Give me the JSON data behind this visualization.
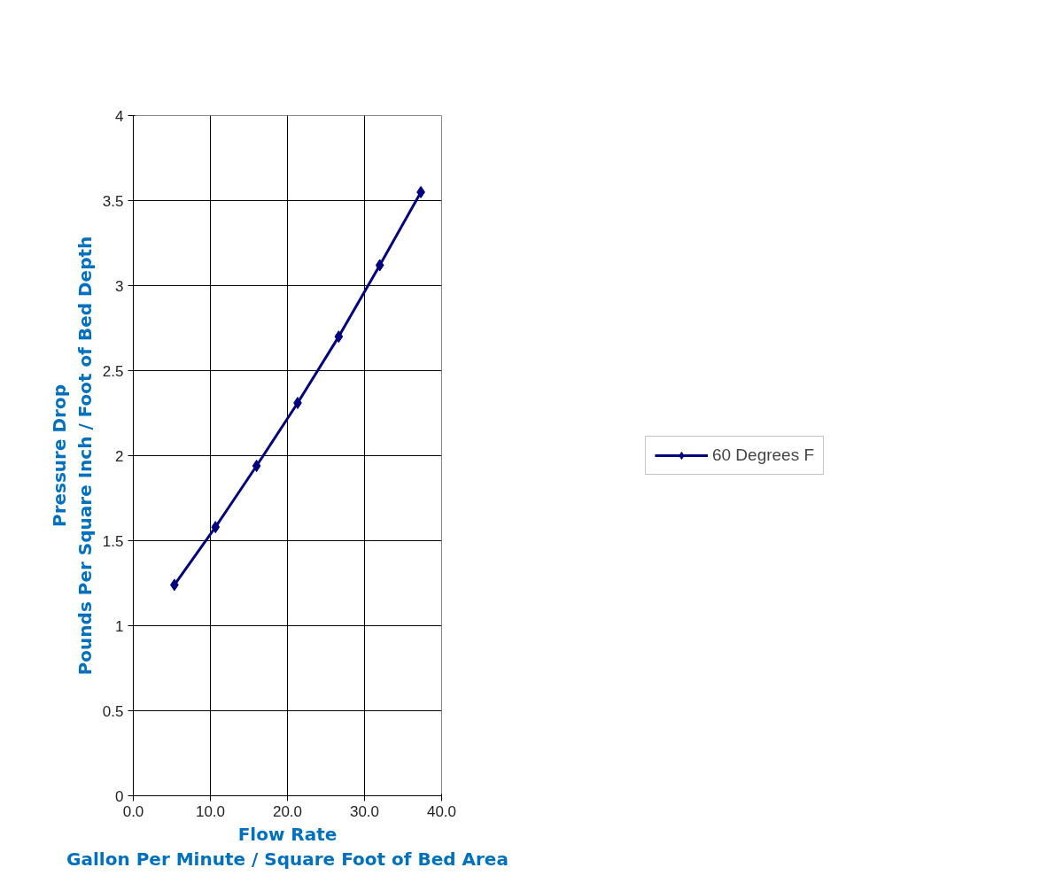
{
  "chart_data": {
    "type": "line",
    "xlabel": "Flow Rate\nGallon Per Minute / Square Foot of Bed Area",
    "ylabel": "Pressure Drop\nPounds Per Square Inch / Foot of Bed Depth",
    "x": [
      5.33,
      10.66,
      15.99,
      21.32,
      26.65,
      31.98,
      37.31
    ],
    "series": [
      {
        "name": "60 Degrees F",
        "color": "#000080",
        "values": [
          1.24,
          1.58,
          1.94,
          2.31,
          2.7,
          3.12,
          3.55
        ]
      }
    ],
    "xlim": [
      0,
      40
    ],
    "xticks": [
      {
        "value": 0,
        "label": "0.0"
      },
      {
        "value": 10,
        "label": "10.0"
      },
      {
        "value": 20,
        "label": "20.0"
      },
      {
        "value": 30,
        "label": "30.0"
      },
      {
        "value": 40,
        "label": "40.0"
      }
    ],
    "ylim": [
      0,
      4
    ],
    "yticks": [
      0,
      0.5,
      1,
      1.5,
      2,
      2.5,
      3,
      3.5,
      4
    ],
    "grid": true,
    "legend": "right",
    "marker": "diamond",
    "line_style": "solid"
  }
}
